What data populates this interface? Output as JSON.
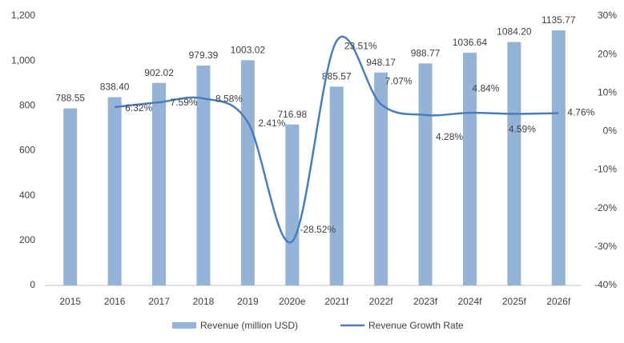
{
  "chart_data": {
    "type": "bar-line",
    "categories": [
      "2015",
      "2016",
      "2017",
      "2018",
      "2019",
      "2020e",
      "2021f",
      "2022f",
      "2023f",
      "2024f",
      "2025f",
      "2026f"
    ],
    "series": [
      {
        "name": "Revenue (million USD)",
        "type": "bar",
        "color": "#95b3d7",
        "values": [
          788.55,
          838.4,
          902.02,
          979.39,
          1003.02,
          716.98,
          885.57,
          948.17,
          988.77,
          1036.64,
          1084.2,
          1135.77
        ],
        "value_labels": [
          "788.55",
          "838.40",
          "902.02",
          "979.39",
          "1003.02",
          "716.98",
          "885.57",
          "948.17",
          "988.77",
          "1036.64",
          "1084.20",
          "1135.77"
        ]
      },
      {
        "name": "Revenue Growth Rate",
        "type": "line",
        "axis": "y2",
        "color": "#4a7ebb",
        "values": [
          null,
          6.32,
          7.59,
          8.58,
          2.41,
          -28.52,
          23.51,
          7.07,
          4.28,
          4.84,
          4.59,
          4.76
        ],
        "value_labels": [
          null,
          "6.32%",
          "7.59%",
          "8.58%",
          "2.41%",
          "-28.52%",
          "23.51%",
          "7.07%",
          "4.28%",
          "4.84%",
          "4.59%",
          "4.76%"
        ]
      }
    ],
    "ylim": [
      0,
      1200
    ],
    "yticks": [
      0,
      200,
      400,
      600,
      800,
      {
        "value": 1000,
        "label": "1,000"
      },
      {
        "value": 1200,
        "label": "1,200"
      }
    ],
    "y2lim": [
      -40,
      30
    ],
    "y2ticks": [
      {
        "value": -40,
        "label": "-40%"
      },
      {
        "value": -30,
        "label": "-30%"
      },
      {
        "value": -20,
        "label": "-20%"
      },
      {
        "value": -10,
        "label": "-10%"
      },
      {
        "value": 0,
        "label": "0%"
      },
      {
        "value": 10,
        "label": "10%"
      },
      {
        "value": 20,
        "label": "20%"
      },
      {
        "value": 30,
        "label": "30%"
      }
    ],
    "grid": false,
    "legend": "bottom"
  }
}
